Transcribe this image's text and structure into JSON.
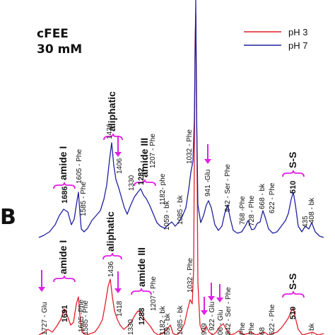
{
  "figure": {
    "header_line1": "cFEE",
    "header_line2": "30 mM",
    "panel_label": "B"
  },
  "chart_data": {
    "type": "line",
    "title": "",
    "xlabel": "",
    "ylabel": "",
    "legend_position": "top-right",
    "series": [
      {
        "name": "pH 3",
        "color": "#e0202a"
      },
      {
        "name": "pH 7",
        "color": "#2020a0"
      }
    ],
    "pH7_band_labels": [
      {
        "text": "amide I",
        "bold": true
      },
      {
        "text": "aliphatic",
        "bold": true
      },
      {
        "text": "amide III",
        "bold": true
      },
      {
        "text": "S-S",
        "bold": true
      }
    ],
    "pH7_peak_labels": [
      {
        "text": "1686",
        "bold": true
      },
      {
        "text": "1605 - Phe",
        "bold": false
      },
      {
        "text": "1585 - Phe",
        "bold": false
      },
      {
        "text": "1436",
        "bold": false
      },
      {
        "text": "1406",
        "bold": false
      },
      {
        "text": "1330",
        "bold": false
      },
      {
        "text": "1282",
        "bold": true
      },
      {
        "text": "1207 - Phe",
        "bold": false
      },
      {
        "text": "1182- phe",
        "bold": false
      },
      {
        "text": "1059 - bk",
        "bold": false
      },
      {
        "text": "1085 - bk",
        "bold": false
      },
      {
        "text": "1032 - Phe",
        "bold": false
      },
      {
        "text": "941 -Glu",
        "bold": false
      },
      {
        "text": "842 - Ser - Phe",
        "bold": false
      },
      {
        "text": "768 -Phe",
        "bold": false
      },
      {
        "text": "728 - Phe",
        "bold": false
      },
      {
        "text": "668 - bk",
        "bold": false
      },
      {
        "text": "622 - Phe",
        "bold": false
      },
      {
        "text": "510",
        "bold": true
      },
      {
        "text": "435",
        "bold": false
      },
      {
        "text": "408 - bk",
        "bold": false
      }
    ],
    "pH3_band_labels": [
      {
        "text": "amide I",
        "bold": true
      },
      {
        "text": "aliphatic",
        "bold": true
      },
      {
        "text": "amide III",
        "bold": true
      },
      {
        "text": "S-S",
        "bold": true
      }
    ],
    "pH3_peak_labels": [
      {
        "text": "1727 - Glu",
        "bold": false
      },
      {
        "text": "1691",
        "bold": true
      },
      {
        "text": "1605 -Phe",
        "bold": false
      },
      {
        "text": "1585 - Phe",
        "bold": false
      },
      {
        "text": "1436",
        "bold": false
      },
      {
        "text": "1418",
        "bold": false
      },
      {
        "text": "1330",
        "bold": false
      },
      {
        "text": "1288",
        "bold": true
      },
      {
        "text": "1207 - Phe",
        "bold": false
      },
      {
        "text": "1182 - bk",
        "bold": false
      },
      {
        "text": "59 - bk",
        "bold": false
      },
      {
        "text": "1085 - bk",
        "bold": false
      },
      {
        "text": "1032 - Phe",
        "bold": false
      },
      {
        "text": "939",
        "bold": false
      },
      {
        "text": "- 922 - Glu",
        "bold": false
      },
      {
        "text": "06 - Glu",
        "bold": false
      },
      {
        "text": "842 - Ser - Phe",
        "bold": false
      },
      {
        "text": "Phe",
        "bold": false
      },
      {
        "text": "Phe",
        "bold": false
      },
      {
        "text": "68",
        "bold": false
      },
      {
        "text": "622 - Phe",
        "bold": false
      },
      {
        "text": "510",
        "bold": true
      },
      {
        "text": "- bk",
        "bold": false
      }
    ]
  }
}
